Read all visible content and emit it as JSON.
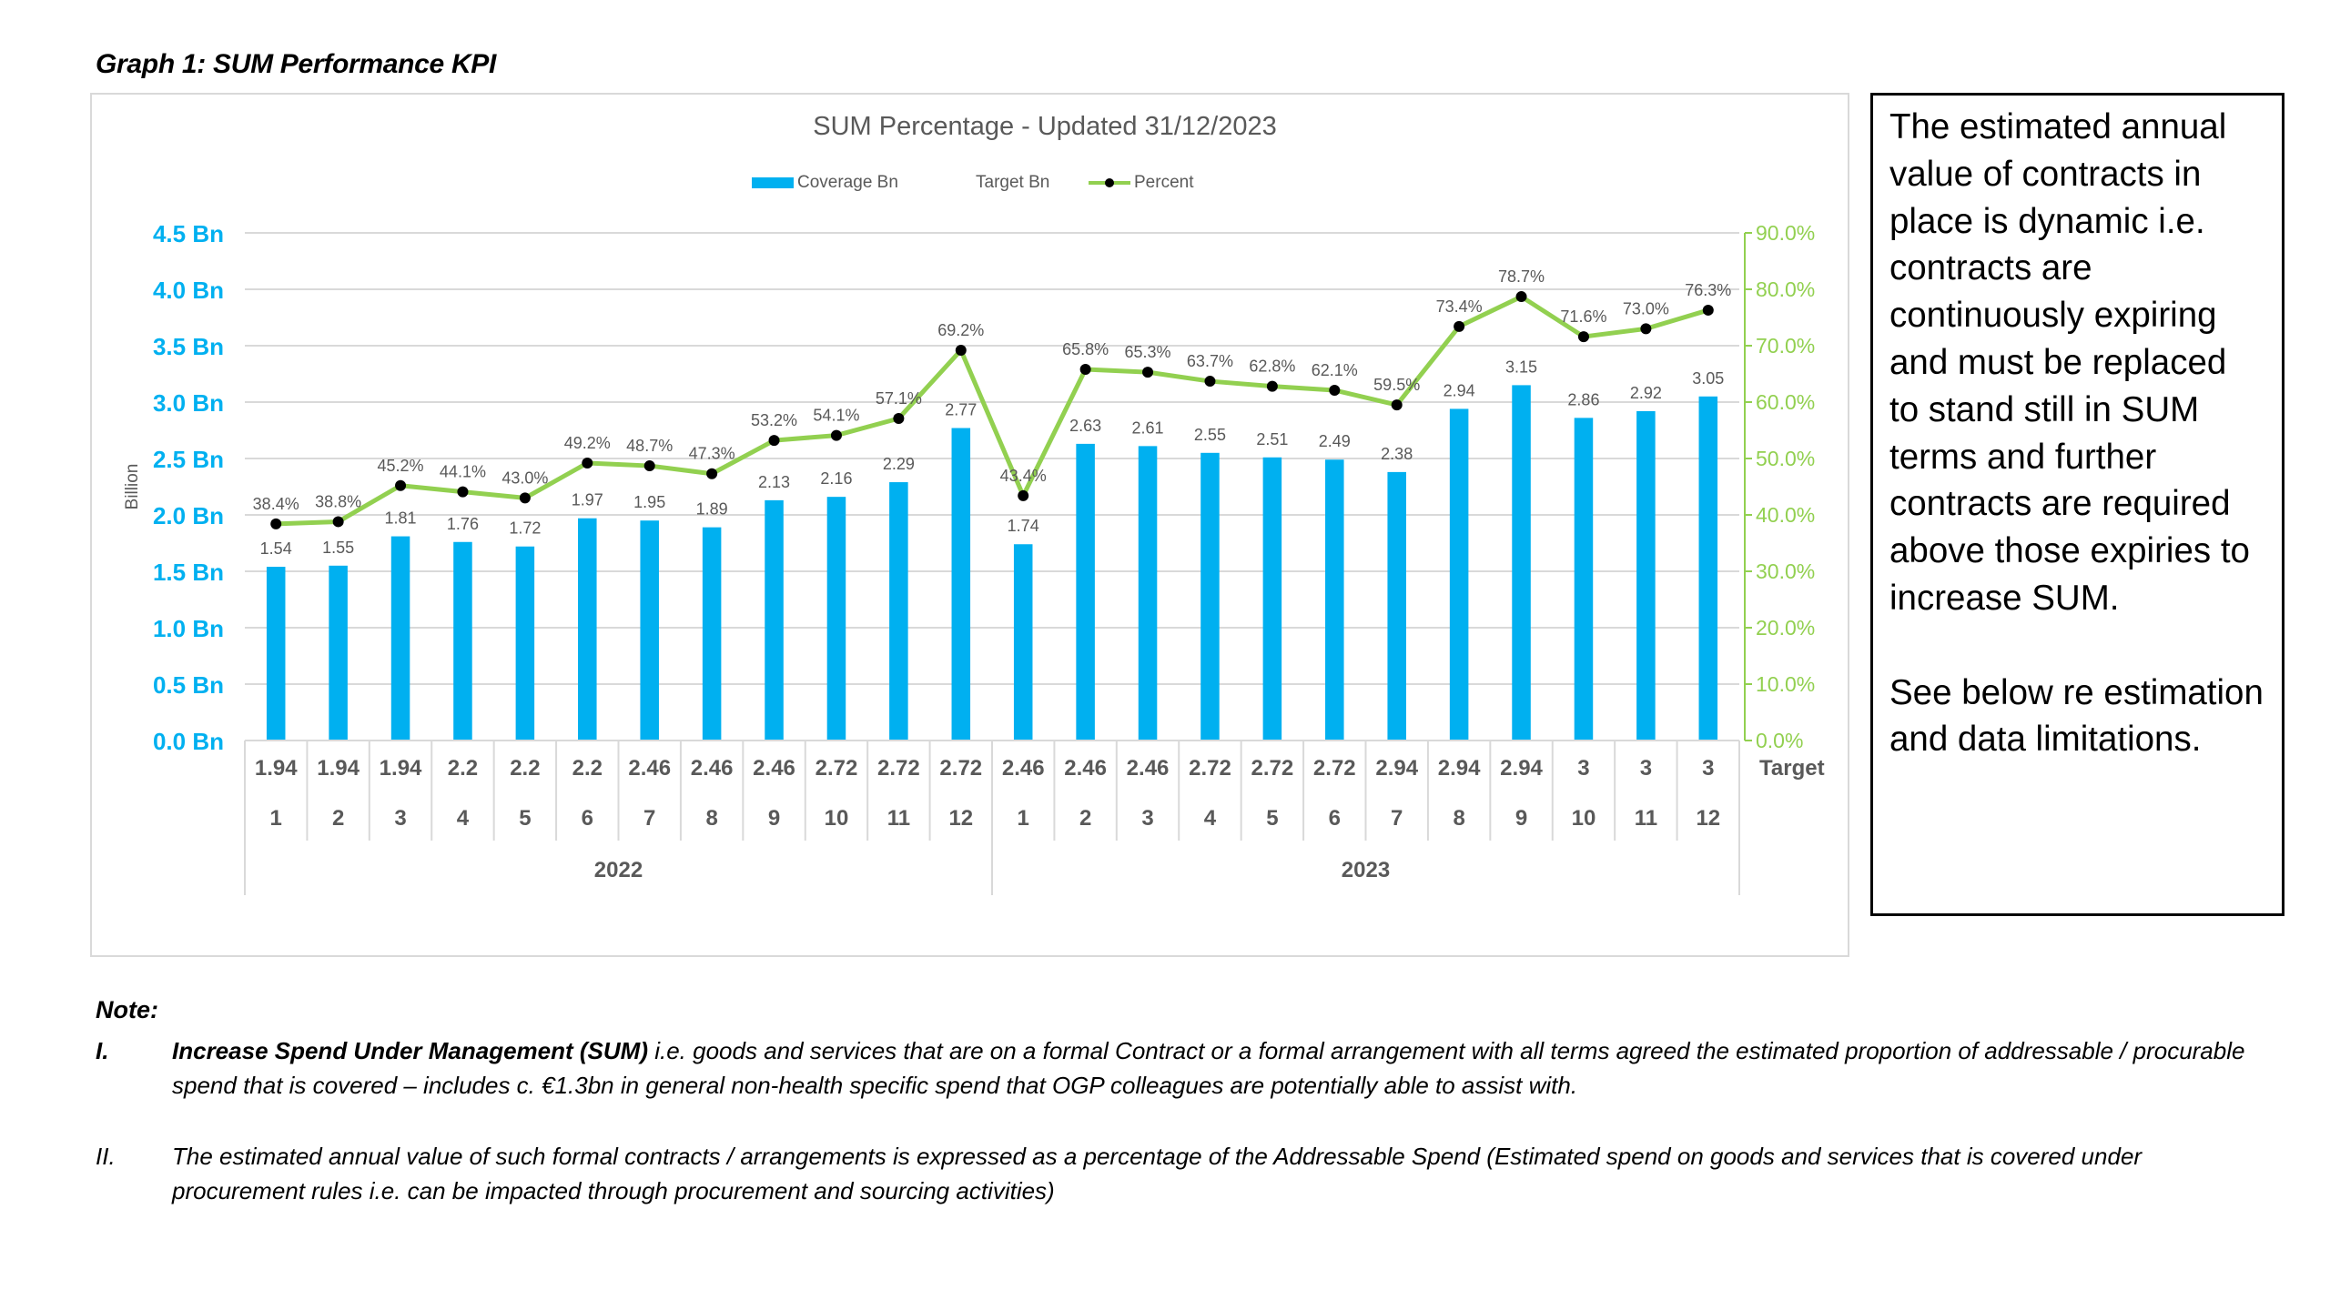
{
  "page": {
    "graph_title": "Graph 1:  SUM Performance KPI",
    "side_box": {
      "paragraph1": "The estimated annual value of contracts in place is dynamic i.e. contracts are continuously expiring and must be replaced to stand still in SUM terms and further contracts are required above those expiries to increase SUM.",
      "paragraph2": "See below re estimation and data limitations."
    },
    "notes": {
      "heading": "Note:",
      "items": [
        {
          "num": "I.",
          "lead": "Increase Spend Under Management (SUM)",
          "text": " i.e. goods and services that are on a formal Contract or a formal arrangement with all terms agreed the estimated proportion of addressable / procurable spend that is covered – includes c. €1.3bn in general non-health specific spend that OGP colleagues are potentially able to assist with."
        },
        {
          "num": "II.",
          "lead": "",
          "text": "The estimated annual value of such formal contracts / arrangements is expressed as a percentage of the Addressable Spend (Estimated spend on goods and services that is covered under procurement rules i.e. can be impacted through procurement and sourcing activities)"
        }
      ]
    }
  },
  "chart_data": {
    "type": "bar",
    "title": "SUM Percentage - Updated 31/12/2023",
    "ylabel": "Billion",
    "ylim": [
      0,
      4.5
    ],
    "y2lim": [
      0,
      90
    ],
    "y_ticks": [
      "0.0 Bn",
      "0.5 Bn",
      "1.0 Bn",
      "1.5 Bn",
      "2.0 Bn",
      "2.5 Bn",
      "3.0 Bn",
      "3.5 Bn",
      "4.0 Bn",
      "4.5 Bn"
    ],
    "y2_ticks": [
      "0.0%",
      "10.0%",
      "20.0%",
      "30.0%",
      "40.0%",
      "50.0%",
      "60.0%",
      "70.0%",
      "80.0%",
      "90.0%"
    ],
    "legend": [
      "Coverage Bn",
      "Target Bn",
      "Percent"
    ],
    "legend_position": "top",
    "grid": true,
    "categories": [
      "1",
      "2",
      "3",
      "4",
      "5",
      "6",
      "7",
      "8",
      "9",
      "10",
      "11",
      "12",
      "1",
      "2",
      "3",
      "4",
      "5",
      "6",
      "7",
      "8",
      "9",
      "10",
      "11",
      "12"
    ],
    "years": [
      {
        "label": "2022",
        "start": 0,
        "count": 12
      },
      {
        "label": "2023",
        "start": 12,
        "count": 12
      }
    ],
    "target_row_label": "Target",
    "series": [
      {
        "name": "Coverage Bn",
        "type": "bar",
        "axis": "left",
        "values": [
          1.54,
          1.55,
          1.81,
          1.76,
          1.72,
          1.97,
          1.95,
          1.89,
          2.13,
          2.16,
          2.29,
          2.77,
          1.74,
          2.63,
          2.61,
          2.55,
          2.51,
          2.49,
          2.38,
          2.94,
          3.15,
          2.86,
          2.92,
          3.05
        ]
      },
      {
        "name": "Target Bn",
        "type": "table-row",
        "values": [
          "1.94",
          "1.94",
          "1.94",
          "2.2",
          "2.2",
          "2.2",
          "2.46",
          "2.46",
          "2.46",
          "2.72",
          "2.72",
          "2.72",
          "2.46",
          "2.46",
          "2.46",
          "2.72",
          "2.72",
          "2.72",
          "2.94",
          "2.94",
          "2.94",
          "3",
          "3",
          "3"
        ]
      },
      {
        "name": "Percent",
        "type": "line",
        "axis": "right",
        "values": [
          38.4,
          38.8,
          45.2,
          44.1,
          43.0,
          49.2,
          48.7,
          47.3,
          53.2,
          54.1,
          57.1,
          69.2,
          43.4,
          65.8,
          65.3,
          63.7,
          62.8,
          62.1,
          59.5,
          73.4,
          78.7,
          71.6,
          73.0,
          76.3
        ]
      }
    ],
    "colors": {
      "bar": "#00b0f0",
      "line": "#92d050",
      "marker": "#000000",
      "grid": "#d9d9d9",
      "axis_text": "#595959",
      "left_axis": "#00b0f0",
      "right_axis": "#92d050"
    }
  }
}
